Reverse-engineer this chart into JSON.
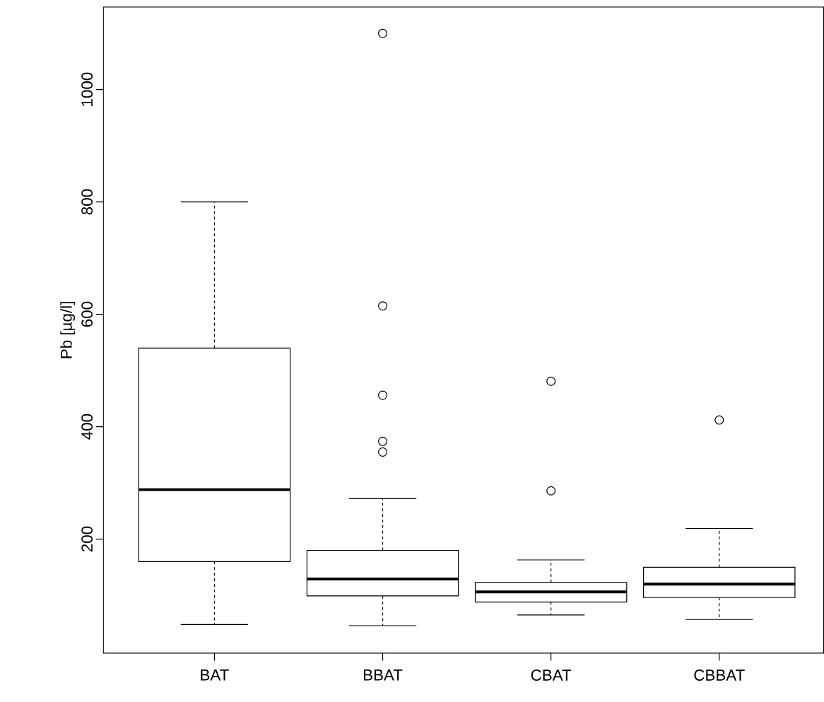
{
  "chart_data": {
    "type": "box",
    "ylabel": "Pb  [µg/l]",
    "categories": [
      "BAT",
      "BBAT",
      "CBAT",
      "CBBAT"
    ],
    "boxes": [
      {
        "low": 48,
        "q1": 160,
        "median": 288,
        "q3": 540,
        "high": 800
      },
      {
        "low": 46,
        "q1": 99,
        "median": 129,
        "q3": 180,
        "high": 272,
        "outliers": [
          1100,
          615,
          456,
          374,
          355
        ]
      },
      {
        "low": 65,
        "q1": 88,
        "median": 106,
        "q3": 123,
        "high": 163,
        "outliers": [
          481,
          286
        ]
      },
      {
        "low": 57,
        "q1": 96,
        "median": 120,
        "q3": 150,
        "high": 219,
        "outliers": [
          412
        ]
      }
    ],
    "ylim": [
      -3,
      1147
    ],
    "yticks": [
      200,
      400,
      600,
      800,
      1000
    ]
  }
}
